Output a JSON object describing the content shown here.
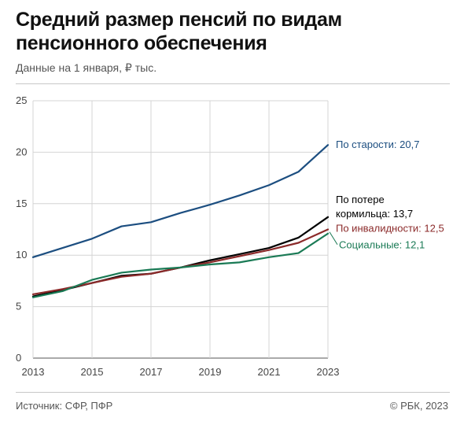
{
  "header": {
    "title": "Средний размер пенсий по видам пенсионного обеспечения",
    "subtitle": "Данные на 1 января, ₽ тыс."
  },
  "footer": {
    "source": "Источник: СФР, ПФР",
    "credit": "© РБК, 2023"
  },
  "chart_data": {
    "type": "line",
    "x": [
      2013,
      2014,
      2015,
      2016,
      2017,
      2018,
      2019,
      2020,
      2021,
      2022,
      2023
    ],
    "xticks": [
      "2013",
      "2015",
      "2017",
      "2019",
      "2021",
      "2023"
    ],
    "yticks": [
      "0",
      "5",
      "10",
      "15",
      "20",
      "25"
    ],
    "xlim": [
      2013,
      2023
    ],
    "ylim": [
      0,
      25
    ],
    "grid": true,
    "series": [
      {
        "name": "По старости",
        "label": "По старости: 20,7",
        "color": "#1c4e80",
        "values": [
          9.8,
          10.7,
          11.6,
          12.8,
          13.2,
          14.1,
          14.9,
          15.8,
          16.8,
          18.1,
          20.7
        ]
      },
      {
        "name": "По потере кормильца",
        "label_lines": [
          "По потере",
          "кормильца: 13,7"
        ],
        "color": "#000000",
        "values": [
          6.0,
          6.6,
          7.3,
          8.0,
          8.2,
          8.8,
          9.5,
          10.1,
          10.7,
          11.7,
          13.7
        ]
      },
      {
        "name": "По инвалидности",
        "label": "По инвалидности: 12,5",
        "color": "#8b2a2a",
        "values": [
          6.2,
          6.7,
          7.3,
          7.9,
          8.2,
          8.8,
          9.3,
          9.9,
          10.5,
          11.2,
          12.5
        ]
      },
      {
        "name": "Социальные",
        "label": "Социальные: 12,1",
        "color": "#1a7a55",
        "values": [
          5.9,
          6.5,
          7.6,
          8.3,
          8.6,
          8.8,
          9.1,
          9.3,
          9.8,
          10.2,
          12.1
        ]
      }
    ]
  }
}
